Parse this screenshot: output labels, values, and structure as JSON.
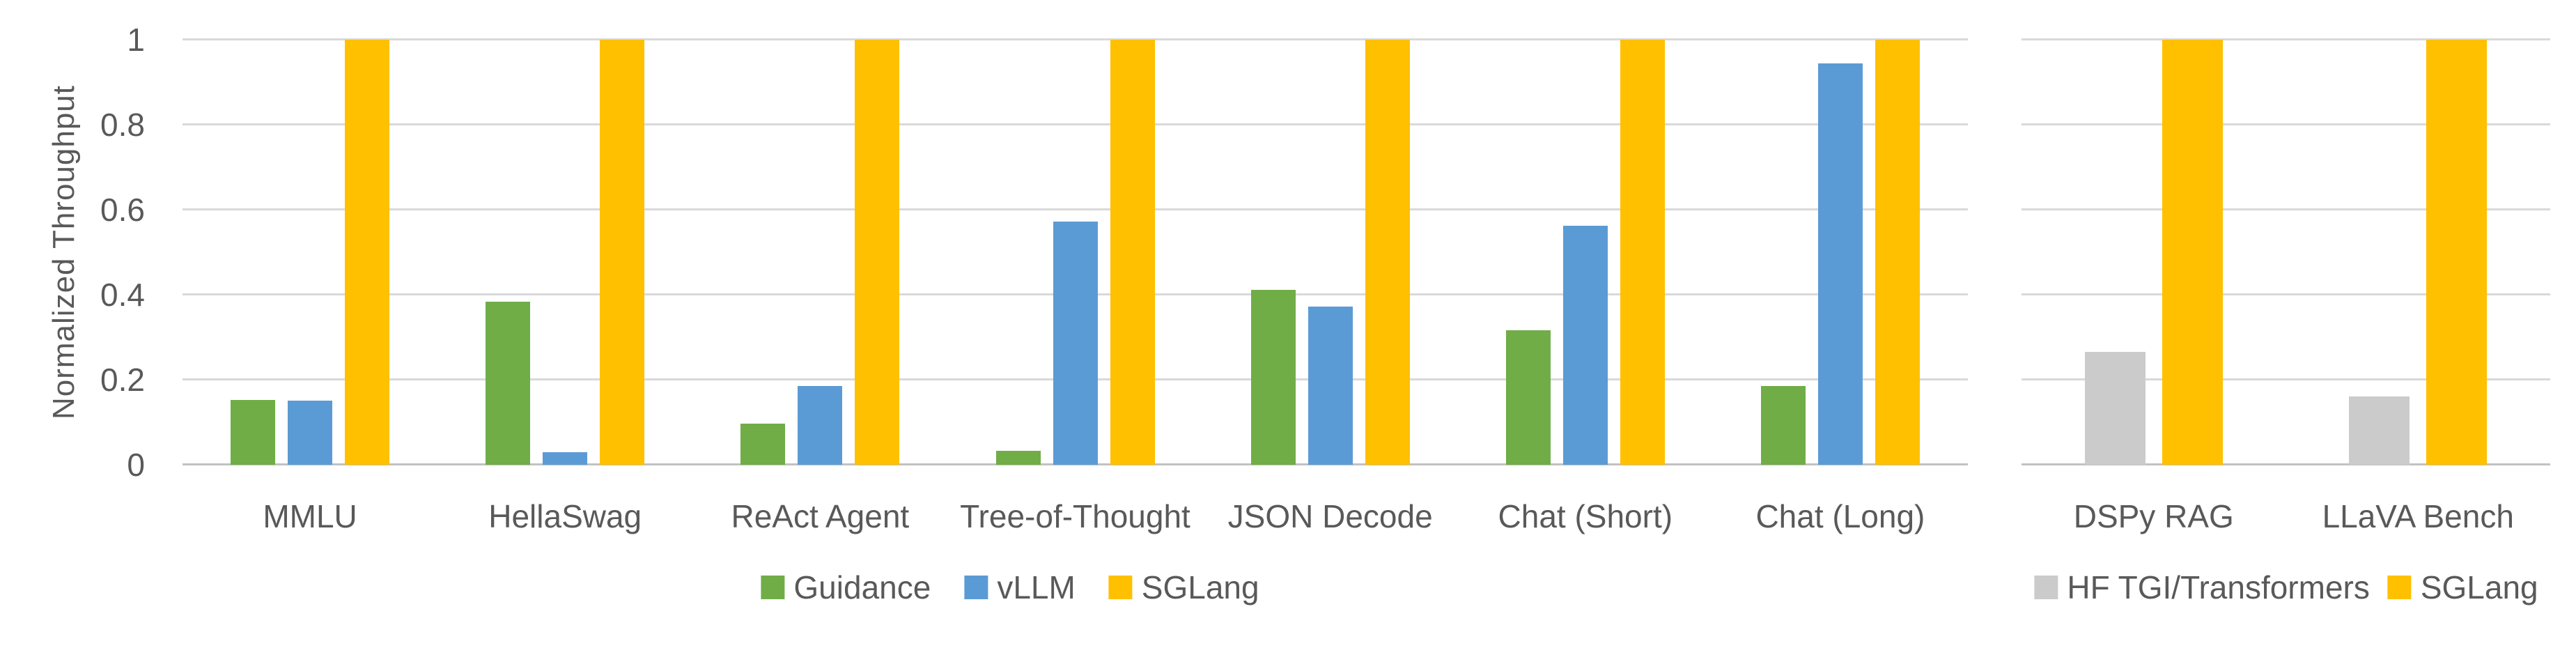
{
  "colors": {
    "background": "#ffffff",
    "text": "#595959",
    "gridline": "#d9d9d9",
    "axis_line": "#c2c2c2",
    "guidance_green": "#70ad47",
    "vllm_blue": "#5b9bd5",
    "sglang_yellow": "#ffc000",
    "hf_gray": "#cccbcb"
  },
  "chart_data": [
    {
      "type": "bar",
      "title": "",
      "xlabel": "",
      "ylabel": "Normalized Throughput",
      "ylim": [
        0,
        1
      ],
      "yticks": [
        "0",
        "0.2",
        "0.4",
        "0.6",
        "0.8",
        "1"
      ],
      "ytick_values": [
        0,
        0.2,
        0.4,
        0.6,
        0.8,
        1
      ],
      "grid": true,
      "legend_position": "bottom",
      "categories": [
        "MMLU",
        "HellaSwag",
        "ReAct Agent",
        "Tree-of-Thought",
        "JSON Decode",
        "Chat (Short)",
        "Chat (Long)"
      ],
      "series": [
        {
          "name": "Guidance",
          "color": "#70ad47",
          "values": [
            0.153,
            0.383,
            0.097,
            0.033,
            0.412,
            0.317,
            0.186
          ]
        },
        {
          "name": "vLLM",
          "color": "#5b9bd5",
          "values": [
            0.15,
            0.029,
            0.185,
            0.572,
            0.372,
            0.562,
            0.944
          ]
        },
        {
          "name": "SGLang",
          "color": "#ffc000",
          "values": [
            1,
            1,
            1,
            1,
            1,
            1,
            1
          ]
        }
      ]
    },
    {
      "type": "bar",
      "title": "",
      "xlabel": "",
      "ylabel": "",
      "ylim": [
        0,
        1
      ],
      "ytick_values": [
        0,
        0.2,
        0.4,
        0.6,
        0.8,
        1
      ],
      "grid": true,
      "legend_position": "bottom",
      "categories": [
        "DSPy RAG",
        "LLaVA Bench"
      ],
      "series": [
        {
          "name": "HF TGI/Transformers",
          "color": "#cccbcb",
          "values": [
            0.265,
            0.161
          ]
        },
        {
          "name": "SGLang",
          "color": "#ffc000",
          "values": [
            1,
            1
          ]
        }
      ]
    }
  ]
}
